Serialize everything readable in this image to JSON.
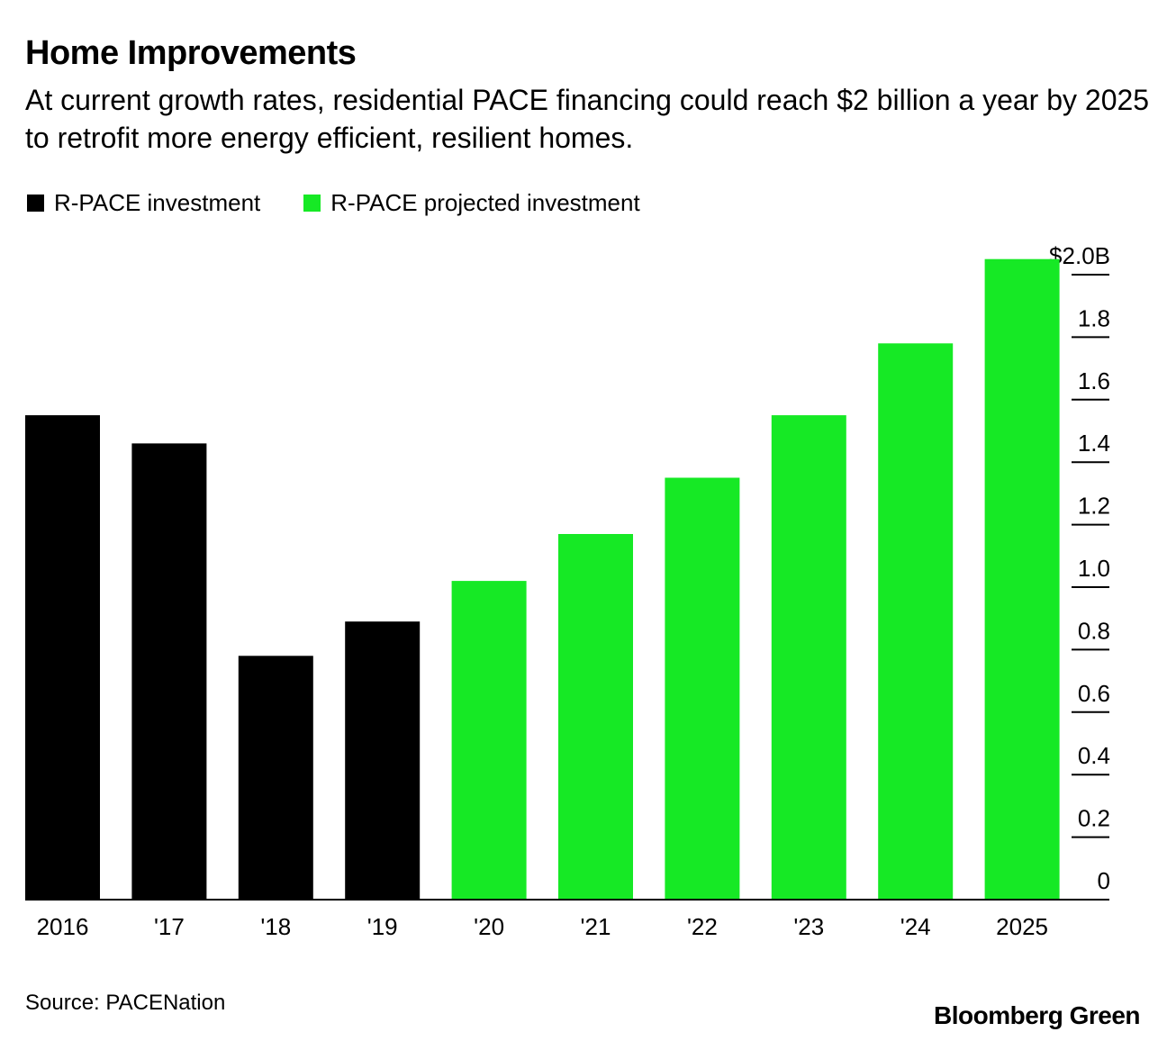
{
  "header": {
    "title": "Home Improvements",
    "subtitle": "At current growth rates, residential PACE financing could reach $2 billion a year by 2025 to retrofit more energy efficient, resilient homes."
  },
  "legend": {
    "actual_label": "R-PACE investment",
    "projected_label": "R-PACE projected investment"
  },
  "colors": {
    "actual": "#000000",
    "projected": "#16e925"
  },
  "footer": {
    "source": "Source: PACENation",
    "brand": "Bloomberg Green"
  },
  "chart_data": {
    "type": "bar",
    "title": "Home Improvements",
    "xlabel": "",
    "ylabel": "",
    "ylim": [
      0,
      2.0
    ],
    "grid": false,
    "legend_position": "top-left",
    "y_axis_position": "right",
    "categories": [
      "2016",
      "'17",
      "'18",
      "'19",
      "'20",
      "'21",
      "'22",
      "'23",
      "'24",
      "2025"
    ],
    "series": [
      {
        "name": "R-PACE investment",
        "values": [
          1.55,
          1.46,
          0.78,
          0.89,
          null,
          null,
          null,
          null,
          null,
          null
        ]
      },
      {
        "name": "R-PACE projected investment",
        "values": [
          null,
          null,
          null,
          null,
          1.02,
          1.17,
          1.35,
          1.55,
          1.78,
          2.05
        ]
      }
    ],
    "y_ticks": [
      {
        "value": 0,
        "label": "0"
      },
      {
        "value": 0.2,
        "label": "0.2"
      },
      {
        "value": 0.4,
        "label": "0.4"
      },
      {
        "value": 0.6,
        "label": "0.6"
      },
      {
        "value": 0.8,
        "label": "0.8"
      },
      {
        "value": 1.0,
        "label": "1.0"
      },
      {
        "value": 1.2,
        "label": "1.2"
      },
      {
        "value": 1.4,
        "label": "1.4"
      },
      {
        "value": 1.6,
        "label": "1.6"
      },
      {
        "value": 1.8,
        "label": "1.8"
      },
      {
        "value": 2.0,
        "label": "$2.0B"
      }
    ]
  }
}
